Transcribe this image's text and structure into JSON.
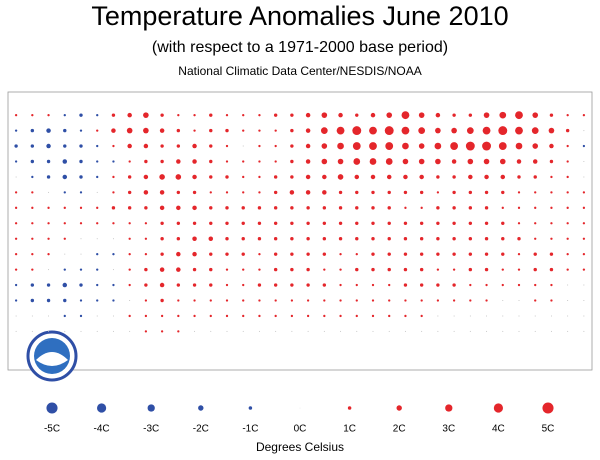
{
  "chart_data": {
    "type": "dotmap",
    "title": "Temperature Anomalies June 2010",
    "subtitle": "(with respect to a 1971-2000 base period)",
    "source": "National Climatic Data Center/NESDIS/NOAA",
    "legend_title": "Degrees Celsius",
    "negative_color": "#2f4fa6",
    "positive_color": "#e4262b",
    "legend": [
      {
        "value": -5,
        "label": "-5C"
      },
      {
        "value": -4,
        "label": "-4C"
      },
      {
        "value": -3,
        "label": "-3C"
      },
      {
        "value": -2,
        "label": "-2C"
      },
      {
        "value": -1,
        "label": "-1C"
      },
      {
        "value": 0,
        "label": "0C"
      },
      {
        "value": 1,
        "label": "1C"
      },
      {
        "value": 2,
        "label": "2C"
      },
      {
        "value": 3,
        "label": "3C"
      },
      {
        "value": 4,
        "label": "4C"
      },
      {
        "value": 5,
        "label": "5C"
      }
    ],
    "x": [
      -180,
      -170,
      -160,
      -150,
      -140,
      -130,
      -120,
      -110,
      -100,
      -90,
      -80,
      -70,
      -60,
      -50,
      -40,
      -30,
      -20,
      -10,
      0,
      10,
      20,
      30,
      40,
      50,
      60,
      70,
      80,
      90,
      100,
      110,
      120,
      130,
      140,
      150,
      160,
      170
    ],
    "y": [
      75,
      65,
      55,
      45,
      35,
      25,
      15,
      5,
      -5,
      -15,
      -25,
      -35,
      -45,
      -55,
      -65
    ],
    "values": [
      [
        0.5,
        0.5,
        0.5,
        -0.5,
        -1,
        -0.5,
        1,
        1.5,
        2,
        1,
        0.5,
        0.5,
        1,
        0.5,
        0.5,
        0.5,
        1,
        1,
        1.5,
        2,
        1.5,
        1,
        1.5,
        2,
        3,
        2,
        1.5,
        1,
        1,
        2,
        2.5,
        3,
        2,
        1,
        0.5,
        0.5
      ],
      [
        -0.5,
        -1,
        -1.5,
        -1,
        -0.5,
        0.5,
        1.5,
        2,
        2,
        1.5,
        1,
        0.5,
        1,
        1,
        0.5,
        0.5,
        0.5,
        1,
        1.5,
        2.5,
        3,
        3.5,
        3,
        3.5,
        3,
        2.5,
        2,
        2,
        2.5,
        3,
        3.5,
        3,
        2.5,
        2,
        1,
        0
      ],
      [
        -1,
        -1,
        -1.5,
        -1,
        -1,
        -0.5,
        0.5,
        1.5,
        1.5,
        1,
        1,
        1.5,
        1,
        0.5,
        0,
        0.5,
        0.5,
        1,
        1.5,
        2,
        2.5,
        3,
        3,
        3,
        2.5,
        2,
        2.5,
        3,
        3.5,
        3.5,
        3,
        2.5,
        2,
        1.5,
        0.5,
        -0.5
      ],
      [
        -0.5,
        -1,
        -1,
        -1.5,
        -1,
        -0.5,
        -0.5,
        0.5,
        1,
        1,
        1.5,
        1.5,
        1,
        0.5,
        0.5,
        0.5,
        0.5,
        1,
        1.5,
        2,
        2,
        2.5,
        2.5,
        2.5,
        2,
        2,
        2,
        1.5,
        2,
        2,
        2,
        1.5,
        1.5,
        1,
        0.5,
        0
      ],
      [
        0,
        -0.5,
        -1,
        -1.5,
        -1,
        -0.5,
        0.5,
        1,
        1.5,
        2,
        2,
        1.5,
        1,
        1,
        0.5,
        0.5,
        1,
        1,
        1.5,
        1.5,
        2,
        1.5,
        1.5,
        1.5,
        1.5,
        1.5,
        1,
        1,
        1.5,
        1.5,
        1.5,
        1,
        1,
        0.5,
        0.5,
        0
      ],
      [
        0.5,
        0.5,
        0,
        -0.5,
        -0.5,
        0,
        0.5,
        1,
        1.5,
        1.5,
        1,
        1,
        0.5,
        0.5,
        0.5,
        0.5,
        1,
        1.5,
        1.5,
        1.5,
        1,
        1,
        1,
        1,
        1,
        1,
        0.5,
        1,
        1,
        1,
        1,
        0.5,
        0.5,
        0.5,
        0.5,
        0.5
      ],
      [
        0.5,
        0.5,
        0.5,
        0.5,
        0.5,
        0.5,
        1,
        1,
        1,
        1.5,
        1.5,
        1.5,
        1,
        1,
        1,
        1,
        1,
        1,
        1,
        1,
        1,
        1,
        1,
        1,
        0.5,
        0.5,
        1,
        1,
        1,
        1,
        0.5,
        0.5,
        0.5,
        0.5,
        0.5,
        0.5
      ],
      [
        0.5,
        0.5,
        0.5,
        0.5,
        0.5,
        0.5,
        0.5,
        0.5,
        0.5,
        1,
        1,
        1,
        1,
        1,
        1,
        1,
        1,
        1,
        1,
        1,
        1,
        1,
        1,
        1,
        1,
        1,
        1,
        1,
        1,
        1,
        1,
        0.5,
        0.5,
        0.5,
        0.5,
        0.5
      ],
      [
        0.5,
        0.5,
        0.5,
        0.5,
        0,
        0,
        0,
        0.5,
        0.5,
        1,
        1,
        1.5,
        1.5,
        1,
        1,
        1,
        1,
        1,
        1,
        1,
        1,
        1,
        1,
        1,
        1,
        1,
        1,
        1,
        1,
        1,
        1,
        1,
        0.5,
        0.5,
        0.5,
        0.5
      ],
      [
        0.5,
        0.5,
        0.5,
        0,
        0,
        -0.5,
        -0.5,
        0.5,
        0.5,
        1,
        1.5,
        1.5,
        1,
        1,
        1,
        0.5,
        1,
        1,
        1,
        1,
        0.5,
        0.5,
        1,
        1,
        1,
        1,
        1,
        1,
        1,
        1,
        1,
        0.5,
        1,
        1,
        0.5,
        0.5
      ],
      [
        0.5,
        0.5,
        0,
        -0.5,
        -0.5,
        -0.5,
        0,
        0.5,
        1,
        1.5,
        1.5,
        1,
        1,
        0.5,
        0.5,
        0.5,
        1,
        1,
        1,
        0.5,
        0.5,
        1,
        1,
        1,
        1,
        1,
        0.5,
        0.5,
        1,
        1,
        0.5,
        0.5,
        1,
        1,
        0.5,
        0.5
      ],
      [
        -0.5,
        -1,
        -1,
        -1.5,
        -1,
        -0.5,
        -0.5,
        0.5,
        1,
        1.5,
        1,
        1,
        1,
        0.5,
        0.5,
        1,
        1,
        1,
        1,
        1,
        0.5,
        0.5,
        0.5,
        0.5,
        1,
        1,
        1,
        1,
        0.5,
        0.5,
        0.5,
        0.5,
        0.5,
        0.5,
        0,
        0
      ],
      [
        -0.5,
        -1,
        -1,
        -1,
        -0.5,
        -0.5,
        -0.5,
        0,
        0.5,
        1,
        0.5,
        0.5,
        0.5,
        0.5,
        0.5,
        0.5,
        0.5,
        0.5,
        0.5,
        0.5,
        0.5,
        0.5,
        0.5,
        0.5,
        0.5,
        0.5,
        0.5,
        0.5,
        0.5,
        0.5,
        0,
        0,
        0.5,
        0.5,
        0,
        0
      ],
      [
        0,
        0,
        0,
        -0.5,
        -0.5,
        0,
        0,
        0.5,
        0.5,
        0.5,
        0.5,
        0.5,
        0.5,
        0.5,
        0.5,
        0.5,
        0.5,
        0.5,
        0.5,
        0.5,
        0.5,
        0.5,
        0.5,
        0.5,
        0.5,
        0.5,
        0,
        0,
        0,
        0,
        0,
        0,
        0,
        0,
        0,
        0
      ],
      [
        0,
        0,
        0,
        0,
        0,
        0,
        0,
        0,
        0.5,
        0.5,
        0.5,
        0,
        0,
        0,
        0,
        0,
        0,
        0,
        0,
        0,
        0,
        0,
        0,
        0,
        0,
        0,
        0,
        0,
        0,
        0,
        0,
        0,
        0,
        0,
        0,
        0
      ]
    ]
  }
}
